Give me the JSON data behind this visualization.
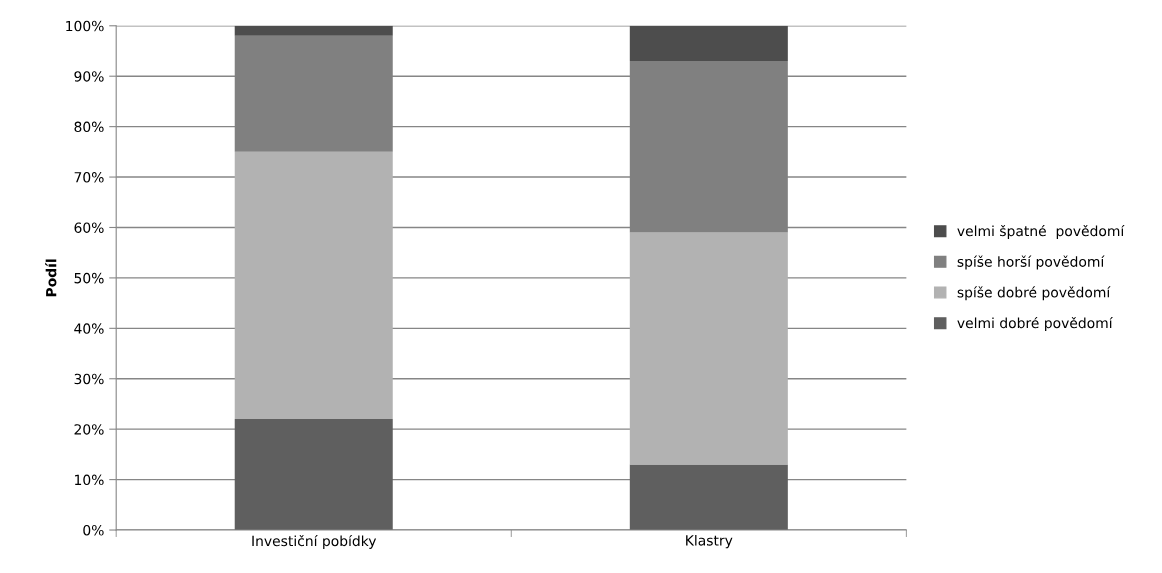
{
  "chart_data": {
    "type": "bar",
    "stacked": true,
    "ylabel": "Podíl",
    "categories": [
      "Investiční pobídky",
      "Klastry"
    ],
    "series": [
      {
        "name": "velmi dobré povědomí",
        "color": "#5f5f5f",
        "values": [
          22,
          13
        ]
      },
      {
        "name": "spíše dobré povědomí",
        "color": "#b2b2b2",
        "values": [
          53,
          46
        ]
      },
      {
        "name": "spíše horší povědomí",
        "color": "#808080",
        "values": [
          23,
          34
        ]
      },
      {
        "name": "velmi špatné  povědomí",
        "color": "#4d4d4d",
        "values": [
          2,
          7
        ]
      }
    ],
    "ylim": [
      0,
      100
    ],
    "yticks": [
      {
        "value": 0,
        "label": "0%"
      },
      {
        "value": 10,
        "label": "10%"
      },
      {
        "value": 20,
        "label": "20%"
      },
      {
        "value": 30,
        "label": "30%"
      },
      {
        "value": 40,
        "label": "40%"
      },
      {
        "value": 50,
        "label": "50%"
      },
      {
        "value": 60,
        "label": "60%"
      },
      {
        "value": 70,
        "label": "70%"
      },
      {
        "value": 80,
        "label": "80%"
      },
      {
        "value": 90,
        "label": "90%"
      },
      {
        "value": 100,
        "label": "100%"
      }
    ],
    "grid": "y",
    "legend": "right"
  }
}
